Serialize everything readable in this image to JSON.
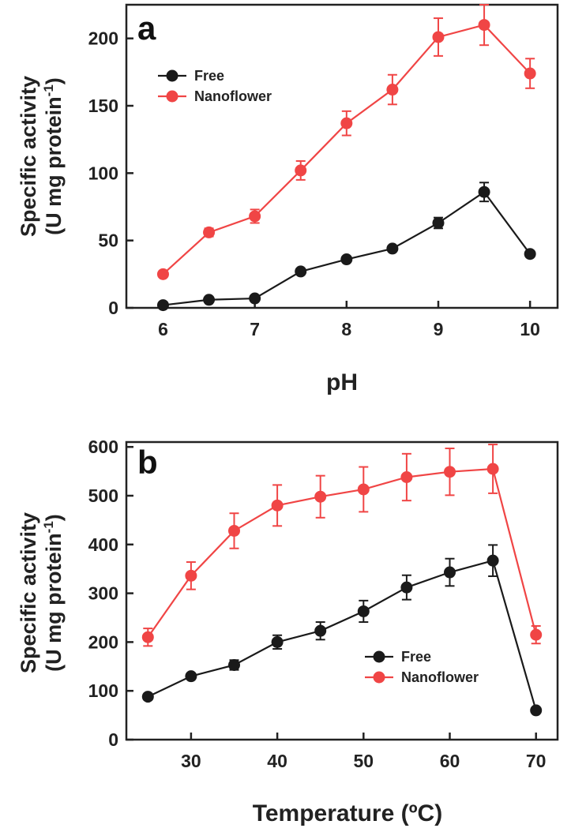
{
  "chart_data": [
    {
      "type": "line",
      "panel_label": "a",
      "xlabel": "pH",
      "ylabel_line1": "Specific activity",
      "ylabel_line2": "(U mg protein",
      "ylabel_sup": "-1",
      "ylabel_close": ")",
      "xlim": [
        5.6,
        10.3
      ],
      "ylim": [
        0,
        225
      ],
      "xticks": [
        6,
        7,
        8,
        9,
        10
      ],
      "yticks": [
        0,
        50,
        100,
        150,
        200
      ],
      "legend_position": "top-left",
      "series": [
        {
          "name": "Free",
          "color": "#1a1a1a",
          "x": [
            6,
            6.5,
            7,
            7.5,
            8,
            8.5,
            9,
            9.5,
            10
          ],
          "y": [
            2,
            6,
            7,
            27,
            36,
            44,
            63,
            86,
            40
          ],
          "err": [
            1,
            1,
            1,
            2,
            2,
            2,
            4,
            7,
            2
          ]
        },
        {
          "name": "Nanoflower",
          "color": "#f04545",
          "x": [
            6,
            6.5,
            7,
            7.5,
            8,
            8.5,
            9,
            9.5,
            10
          ],
          "y": [
            25,
            56,
            68,
            102,
            137,
            162,
            201,
            210,
            174
          ],
          "err": [
            2,
            3,
            5,
            7,
            9,
            11,
            14,
            15,
            11
          ]
        }
      ]
    },
    {
      "type": "line",
      "panel_label": "b",
      "xlabel": "Temperature (ºC)",
      "ylabel_line1": "Specific activity",
      "ylabel_line2": "(U mg protein",
      "ylabel_sup": "-1",
      "ylabel_close": ")",
      "xlim": [
        22.5,
        72.5
      ],
      "ylim": [
        0,
        610
      ],
      "xticks": [
        30,
        40,
        50,
        60,
        70
      ],
      "yticks": [
        0,
        100,
        200,
        300,
        400,
        500,
        600
      ],
      "legend_position": "bottom-right",
      "series": [
        {
          "name": "Free",
          "color": "#1a1a1a",
          "x": [
            25,
            30,
            35,
            40,
            45,
            50,
            55,
            60,
            65,
            70
          ],
          "y": [
            88,
            130,
            153,
            200,
            223,
            263,
            312,
            343,
            367,
            60
          ],
          "err": [
            4,
            6,
            10,
            14,
            18,
            22,
            25,
            28,
            32,
            4
          ]
        },
        {
          "name": "Nanoflower",
          "color": "#f04545",
          "x": [
            25,
            30,
            35,
            40,
            45,
            50,
            55,
            60,
            65,
            70
          ],
          "y": [
            210,
            336,
            428,
            480,
            498,
            513,
            538,
            549,
            555,
            215
          ],
          "err": [
            18,
            28,
            36,
            42,
            43,
            46,
            48,
            48,
            50,
            18
          ]
        }
      ]
    }
  ]
}
